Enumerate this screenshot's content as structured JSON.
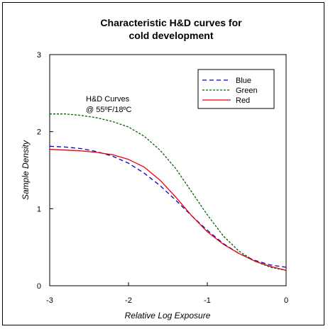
{
  "chart_data": {
    "type": "line",
    "title_line1": "Characteristic H&D curves for",
    "title_line2": "cold development",
    "xlabel": "Relative Log Exposure",
    "ylabel": "Sample Density",
    "xlim": [
      -3,
      0
    ],
    "ylim": [
      0,
      3
    ],
    "x_ticks": [
      "-3",
      "-2",
      "-1",
      "0"
    ],
    "y_ticks": [
      "0",
      "1",
      "2",
      "3"
    ],
    "annotation_line1": "H&D Curves",
    "annotation_line2": "@ 55ºF/18ºC",
    "legend_position": "top-right",
    "series": [
      {
        "name": "Blue",
        "color": "#0000cc",
        "style": "dashed",
        "x": [
          -3.0,
          -2.8,
          -2.6,
          -2.4,
          -2.2,
          -2.0,
          -1.8,
          -1.6,
          -1.4,
          -1.2,
          -1.0,
          -0.8,
          -0.6,
          -0.4,
          -0.2,
          0.0
        ],
        "y": [
          1.81,
          1.8,
          1.78,
          1.74,
          1.68,
          1.59,
          1.46,
          1.3,
          1.11,
          0.91,
          0.72,
          0.55,
          0.42,
          0.33,
          0.27,
          0.24
        ]
      },
      {
        "name": "Green",
        "color": "#006600",
        "style": "dotted",
        "x": [
          -3.0,
          -2.8,
          -2.6,
          -2.4,
          -2.2,
          -2.0,
          -1.8,
          -1.6,
          -1.4,
          -1.2,
          -1.0,
          -0.8,
          -0.6,
          -0.4,
          -0.2,
          0.0
        ],
        "y": [
          2.23,
          2.23,
          2.21,
          2.18,
          2.13,
          2.06,
          1.94,
          1.76,
          1.52,
          1.22,
          0.92,
          0.65,
          0.45,
          0.32,
          0.24,
          0.2
        ]
      },
      {
        "name": "Red",
        "color": "#ee0000",
        "style": "solid",
        "x": [
          -3.0,
          -2.8,
          -2.6,
          -2.4,
          -2.2,
          -2.0,
          -1.8,
          -1.6,
          -1.4,
          -1.2,
          -1.0,
          -0.8,
          -0.6,
          -0.4,
          -0.2,
          0.0
        ],
        "y": [
          1.77,
          1.76,
          1.75,
          1.73,
          1.7,
          1.64,
          1.54,
          1.37,
          1.15,
          0.91,
          0.7,
          0.54,
          0.42,
          0.32,
          0.25,
          0.2
        ]
      }
    ]
  }
}
